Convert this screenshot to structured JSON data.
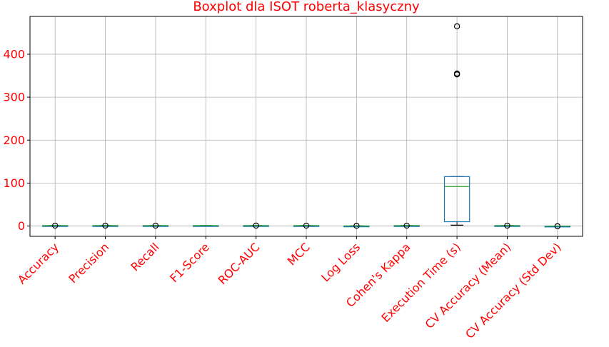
{
  "chart_data": {
    "type": "boxplot",
    "title": "Boxplot dla ISOT roberta_klasyczny",
    "xlabel": "",
    "ylabel": "",
    "ylim": [
      -24,
      488
    ],
    "yticks": [
      0,
      100,
      200,
      300,
      400
    ],
    "grid": true,
    "colors": {
      "text": "#ff0000",
      "box": "#1f77b4",
      "median": "#2ca02c",
      "whisker": "#000000",
      "grid": "#b0b0b0"
    },
    "categories": [
      "Accuracy",
      "Precision",
      "Recall",
      "F1-Score",
      "ROC-AUC",
      "MCC",
      "Log Loss",
      "Cohen's Kappa",
      "Execution Time (s)",
      "CV Accuracy (Mean)",
      "CV Accuracy (Std Dev)"
    ],
    "boxes": [
      {
        "q1": 0.96,
        "median": 0.97,
        "q3": 0.98,
        "whislo": 0.94,
        "whishi": 0.99,
        "fliers": [
          0.9
        ]
      },
      {
        "q1": 0.96,
        "median": 0.97,
        "q3": 0.98,
        "whislo": 0.94,
        "whishi": 0.99,
        "fliers": [
          0.9
        ]
      },
      {
        "q1": 0.96,
        "median": 0.97,
        "q3": 0.98,
        "whislo": 0.94,
        "whishi": 0.99,
        "fliers": [
          0.9
        ]
      },
      {
        "q1": 0.96,
        "median": 0.97,
        "q3": 0.98,
        "whislo": 0.94,
        "whishi": 0.99,
        "fliers": []
      },
      {
        "q1": 0.98,
        "median": 0.99,
        "q3": 0.995,
        "whislo": 0.97,
        "whishi": 1.0,
        "fliers": [
          0.95
        ]
      },
      {
        "q1": 0.92,
        "median": 0.94,
        "q3": 0.96,
        "whislo": 0.9,
        "whishi": 0.98,
        "fliers": [
          0.85
        ]
      },
      {
        "q1": 0.1,
        "median": 0.15,
        "q3": 0.2,
        "whislo": 0.05,
        "whishi": 0.3,
        "fliers": [
          0.6
        ]
      },
      {
        "q1": 0.92,
        "median": 0.94,
        "q3": 0.96,
        "whislo": 0.9,
        "whishi": 0.98,
        "fliers": [
          0.85
        ]
      },
      {
        "q1": 10,
        "median": 92,
        "q3": 115,
        "whislo": 2,
        "whishi": 115,
        "fliers": [
          353,
          355,
          465
        ]
      },
      {
        "q1": 0.96,
        "median": 0.97,
        "q3": 0.98,
        "whislo": 0.94,
        "whishi": 0.99,
        "fliers": [
          0.9
        ]
      },
      {
        "q1": -0.3,
        "median": -0.2,
        "q3": -0.1,
        "whislo": -0.4,
        "whishi": 0.0,
        "fliers": [
          -0.5
        ]
      }
    ]
  }
}
